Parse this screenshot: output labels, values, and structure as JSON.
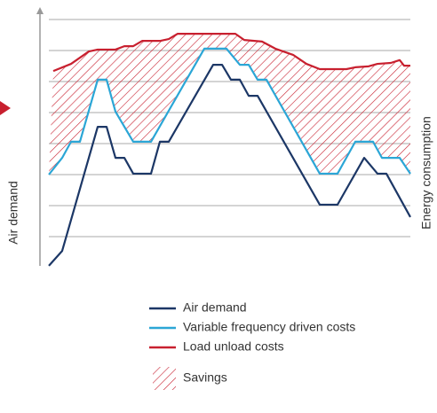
{
  "chart_data": {
    "type": "line",
    "y_label": "Air demand",
    "y2_label": "Energy consumption",
    "xlim": [
      0,
      40.7
    ],
    "ylim": [
      0,
      8
    ],
    "gridlines": [
      1,
      2,
      3,
      4,
      5,
      6,
      7,
      8
    ],
    "area_label": "Savings",
    "area_color": "#c8202f",
    "series": [
      {
        "name": "Air demand",
        "color": "#1c3766",
        "x": [
          0,
          1.5,
          5.5,
          6.5,
          7.5,
          8.5,
          9.5,
          11.5,
          12.5,
          13.5,
          18.5,
          19.5,
          20.5,
          21.5,
          22.5,
          23.5,
          30.5,
          32.5,
          35.5,
          37,
          38,
          40.7
        ],
        "values": [
          0.06,
          0.54,
          4.54,
          4.54,
          3.54,
          3.54,
          3.03,
          3.03,
          4.06,
          4.06,
          6.54,
          6.54,
          6.06,
          6.06,
          5.54,
          5.54,
          2.03,
          2.03,
          3.54,
          3.03,
          3.03,
          1.63
        ]
      },
      {
        "name": "Variable frequency driven costs",
        "color": "#2ba6d6",
        "x": [
          0,
          1.5,
          2.5,
          3.5,
          5.5,
          6.5,
          7.5,
          9.5,
          11.5,
          17.5,
          20,
          21.5,
          22.5,
          23.5,
          24.5,
          30.5,
          32.5,
          34.5,
          36.5,
          37.5,
          39.5,
          40.7
        ],
        "values": [
          3,
          3.54,
          4.06,
          4.06,
          6.06,
          6.06,
          5.03,
          4.06,
          4.06,
          7.06,
          7.06,
          6.54,
          6.54,
          6.06,
          6.06,
          3.03,
          3.03,
          4.06,
          4.06,
          3.54,
          3.54,
          3.03
        ]
      },
      {
        "name": "Load unload costs",
        "color": "#c8202f",
        "x": [
          0.5,
          2.5,
          4.5,
          5.5,
          7.5,
          8.5,
          9.5,
          10.5,
          12.5,
          13.5,
          14.5,
          21,
          22,
          24,
          25.5,
          27.5,
          29,
          30.5,
          33.5,
          34.5,
          36,
          37,
          38.5,
          39.5,
          40,
          40.7
        ],
        "values": [
          6.34,
          6.57,
          6.97,
          7.03,
          7.03,
          7.14,
          7.14,
          7.31,
          7.31,
          7.37,
          7.54,
          7.54,
          7.34,
          7.29,
          7.06,
          6.86,
          6.57,
          6.4,
          6.4,
          6.46,
          6.49,
          6.57,
          6.6,
          6.69,
          6.51,
          6.51
        ]
      }
    ]
  }
}
